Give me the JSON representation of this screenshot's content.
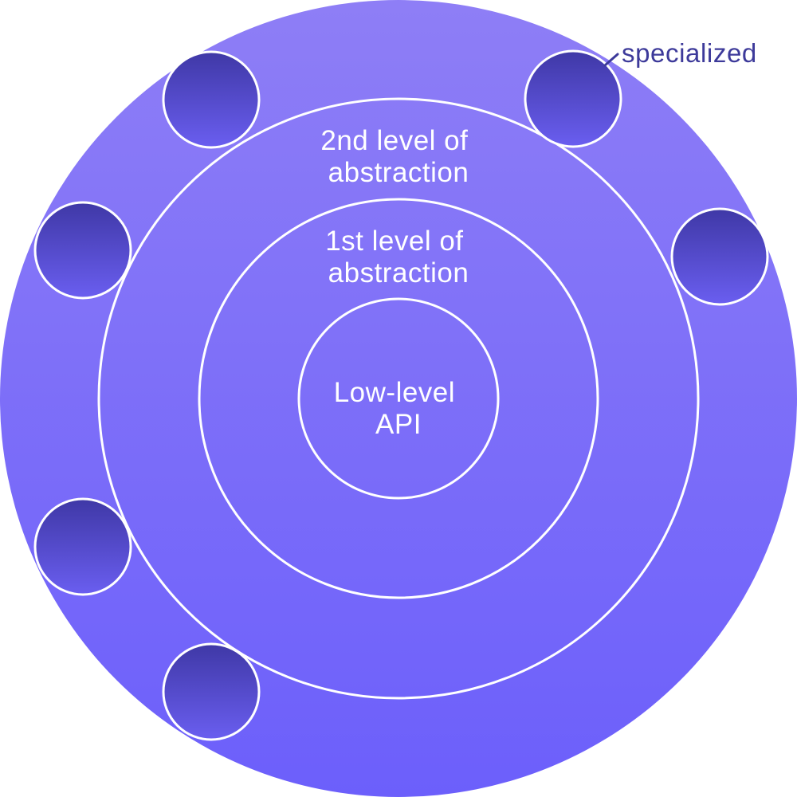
{
  "diagram": {
    "colors": {
      "outer_fill_top": "#8e7ef6",
      "outer_fill_bottom": "#6c5ffb",
      "ring_stroke": "#ffffff",
      "label_text": "#ffffff",
      "specialized_fill_top": "#3f38a6",
      "specialized_fill_bottom": "#6a5ef0",
      "callout_text": "#3d3a9a",
      "callout_line": "#3d3a9a"
    },
    "levels": [
      {
        "id": "low-level",
        "lines": [
          "Low-level",
          "API"
        ]
      },
      {
        "id": "first-level",
        "lines": [
          "1st level of",
          "abstraction"
        ]
      },
      {
        "id": "second-level",
        "lines": [
          "2nd level of",
          "abstraction"
        ]
      }
    ],
    "specialized": {
      "label": "specialized",
      "count": 6
    }
  }
}
